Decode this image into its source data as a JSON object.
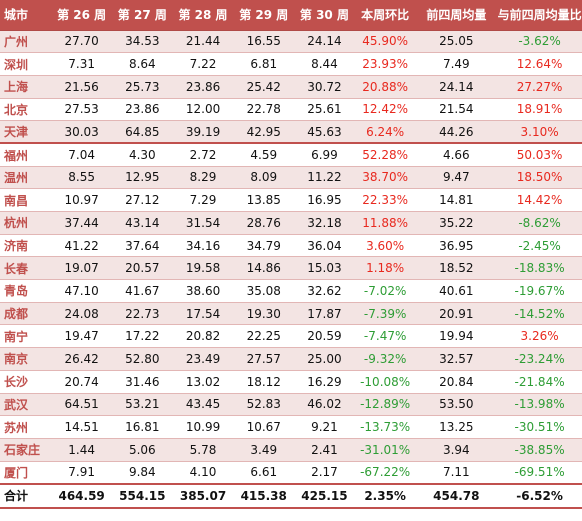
{
  "table": {
    "headers": [
      "城市",
      "第 26 周",
      "第 27 周",
      "第 28 周",
      "第 29 周",
      "第 30 周",
      "本周环比",
      "前四周均量",
      "与前四周均量比"
    ],
    "rows": [
      {
        "city": "广州",
        "w26": "27.70",
        "w27": "34.53",
        "w28": "21.44",
        "w29": "16.55",
        "w30": "24.14",
        "wow": "45.90%",
        "wow_sign": "pos",
        "avg4": "25.05",
        "vs_avg": "-3.62%",
        "vs_sign": "neg"
      },
      {
        "city": "深圳",
        "w26": "7.31",
        "w27": "8.64",
        "w28": "7.22",
        "w29": "6.81",
        "w30": "8.44",
        "wow": "23.93%",
        "wow_sign": "pos",
        "avg4": "7.49",
        "vs_avg": "12.64%",
        "vs_sign": "pos"
      },
      {
        "city": "上海",
        "w26": "21.56",
        "w27": "25.73",
        "w28": "23.86",
        "w29": "25.42",
        "w30": "30.72",
        "wow": "20.88%",
        "wow_sign": "pos",
        "avg4": "24.14",
        "vs_avg": "27.27%",
        "vs_sign": "pos"
      },
      {
        "city": "北京",
        "w26": "27.53",
        "w27": "23.86",
        "w28": "12.00",
        "w29": "22.78",
        "w30": "25.61",
        "wow": "12.42%",
        "wow_sign": "pos",
        "avg4": "21.54",
        "vs_avg": "18.91%",
        "vs_sign": "pos"
      },
      {
        "city": "天津",
        "w26": "30.03",
        "w27": "64.85",
        "w28": "39.19",
        "w29": "42.95",
        "w30": "45.63",
        "wow": "6.24%",
        "wow_sign": "pos",
        "avg4": "44.26",
        "vs_avg": "3.10%",
        "vs_sign": "pos"
      },
      {
        "city": "福州",
        "w26": "7.04",
        "w27": "4.30",
        "w28": "2.72",
        "w29": "4.59",
        "w30": "6.99",
        "wow": "52.28%",
        "wow_sign": "pos",
        "avg4": "4.66",
        "vs_avg": "50.03%",
        "vs_sign": "pos"
      },
      {
        "city": "温州",
        "w26": "8.55",
        "w27": "12.95",
        "w28": "8.29",
        "w29": "8.09",
        "w30": "11.22",
        "wow": "38.70%",
        "wow_sign": "pos",
        "avg4": "9.47",
        "vs_avg": "18.50%",
        "vs_sign": "pos"
      },
      {
        "city": "南昌",
        "w26": "10.97",
        "w27": "27.12",
        "w28": "7.29",
        "w29": "13.85",
        "w30": "16.95",
        "wow": "22.33%",
        "wow_sign": "pos",
        "avg4": "14.81",
        "vs_avg": "14.42%",
        "vs_sign": "pos"
      },
      {
        "city": "杭州",
        "w26": "37.44",
        "w27": "43.14",
        "w28": "31.54",
        "w29": "28.76",
        "w30": "32.18",
        "wow": "11.88%",
        "wow_sign": "pos",
        "avg4": "35.22",
        "vs_avg": "-8.62%",
        "vs_sign": "neg"
      },
      {
        "city": "济南",
        "w26": "41.22",
        "w27": "37.64",
        "w28": "34.16",
        "w29": "34.79",
        "w30": "36.04",
        "wow": "3.60%",
        "wow_sign": "pos",
        "avg4": "36.95",
        "vs_avg": "-2.45%",
        "vs_sign": "neg"
      },
      {
        "city": "长春",
        "w26": "19.07",
        "w27": "20.57",
        "w28": "19.58",
        "w29": "14.86",
        "w30": "15.03",
        "wow": "1.18%",
        "wow_sign": "pos",
        "avg4": "18.52",
        "vs_avg": "-18.83%",
        "vs_sign": "neg"
      },
      {
        "city": "青岛",
        "w26": "47.10",
        "w27": "41.67",
        "w28": "38.60",
        "w29": "35.08",
        "w30": "32.62",
        "wow": "-7.02%",
        "wow_sign": "neg",
        "avg4": "40.61",
        "vs_avg": "-19.67%",
        "vs_sign": "neg"
      },
      {
        "city": "成都",
        "w26": "24.08",
        "w27": "22.73",
        "w28": "17.54",
        "w29": "19.30",
        "w30": "17.87",
        "wow": "-7.39%",
        "wow_sign": "neg",
        "avg4": "20.91",
        "vs_avg": "-14.52%",
        "vs_sign": "neg"
      },
      {
        "city": "南宁",
        "w26": "19.47",
        "w27": "17.22",
        "w28": "20.82",
        "w29": "22.25",
        "w30": "20.59",
        "wow": "-7.47%",
        "wow_sign": "neg",
        "avg4": "19.94",
        "vs_avg": "3.26%",
        "vs_sign": "pos"
      },
      {
        "city": "南京",
        "w26": "26.42",
        "w27": "52.80",
        "w28": "23.49",
        "w29": "27.57",
        "w30": "25.00",
        "wow": "-9.32%",
        "wow_sign": "neg",
        "avg4": "32.57",
        "vs_avg": "-23.24%",
        "vs_sign": "neg"
      },
      {
        "city": "长沙",
        "w26": "20.74",
        "w27": "31.46",
        "w28": "13.02",
        "w29": "18.12",
        "w30": "16.29",
        "wow": "-10.08%",
        "wow_sign": "neg",
        "avg4": "20.84",
        "vs_avg": "-21.84%",
        "vs_sign": "neg"
      },
      {
        "city": "武汉",
        "w26": "64.51",
        "w27": "53.21",
        "w28": "43.45",
        "w29": "52.83",
        "w30": "46.02",
        "wow": "-12.89%",
        "wow_sign": "neg",
        "avg4": "53.50",
        "vs_avg": "-13.98%",
        "vs_sign": "neg"
      },
      {
        "city": "苏州",
        "w26": "14.51",
        "w27": "16.81",
        "w28": "10.99",
        "w29": "10.67",
        "w30": "9.21",
        "wow": "-13.73%",
        "wow_sign": "neg",
        "avg4": "13.25",
        "vs_avg": "-30.51%",
        "vs_sign": "neg"
      },
      {
        "city": "石家庄",
        "w26": "1.44",
        "w27": "5.06",
        "w28": "5.78",
        "w29": "3.49",
        "w30": "2.41",
        "wow": "-31.01%",
        "wow_sign": "neg",
        "avg4": "3.94",
        "vs_avg": "-38.85%",
        "vs_sign": "neg"
      },
      {
        "city": "厦门",
        "w26": "7.91",
        "w27": "9.84",
        "w28": "4.10",
        "w29": "6.61",
        "w30": "2.17",
        "wow": "-67.22%",
        "wow_sign": "neg",
        "avg4": "7.11",
        "vs_avg": "-69.51%",
        "vs_sign": "neg"
      }
    ],
    "total": {
      "city": "合计",
      "w26": "464.59",
      "w27": "554.15",
      "w28": "385.07",
      "w29": "415.38",
      "w30": "425.15",
      "wow": "2.35%",
      "avg4": "454.78",
      "vs_avg": "-6.52%"
    },
    "colors": {
      "header_bg": "#c0504d",
      "stripe": "#f3e4e3",
      "positive": "#e8291f",
      "negative": "#2e9d35"
    }
  }
}
